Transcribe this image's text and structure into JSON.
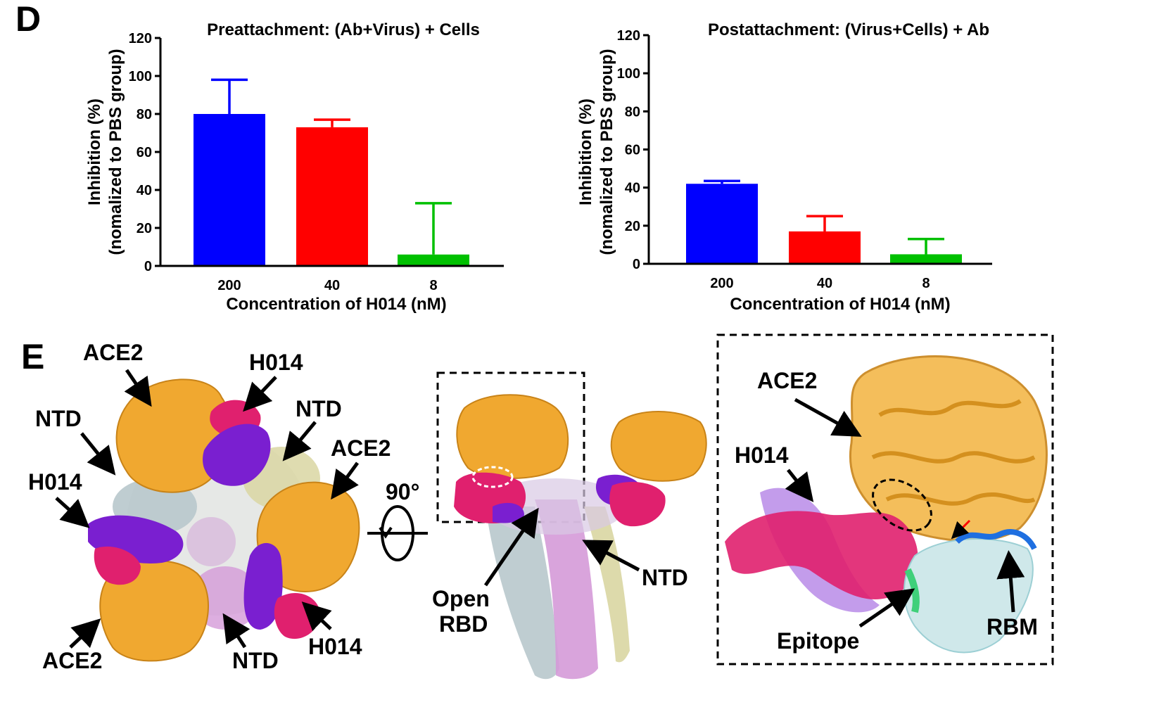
{
  "panel_d_letter": "D",
  "panel_e_letter": "E",
  "colors": {
    "c200": "#0000ff",
    "c40": "#ff0000",
    "c8": "#00c000",
    "ace2": "#f0a830",
    "h014_pink": "#e0206e",
    "h014_purple": "#7a1fd0",
    "spike_gray": "#b8c8cc",
    "spike_pink": "#d59ad8",
    "spike_olive": "#d9d6a2"
  },
  "chart_data": [
    {
      "type": "bar",
      "title": "Preattachment: (Ab+Virus) + Cells",
      "xlabel": "Concentration of H014 (nM)",
      "ylabel": [
        "Inhibition (%)",
        "(nomalized to PBS group)"
      ],
      "ylim": [
        0,
        120
      ],
      "yticks": [
        "0",
        "20",
        "40",
        "60",
        "80",
        "100",
        "120"
      ],
      "categories": [
        "200",
        "40",
        "8"
      ],
      "values": [
        80,
        73,
        6
      ],
      "errors": [
        18,
        4,
        27
      ],
      "colors": [
        "#0000ff",
        "#ff0000",
        "#00c000"
      ]
    },
    {
      "type": "bar",
      "title": "Postattachment: (Virus+Cells) + Ab",
      "xlabel": "Concentration of H014 (nM)",
      "ylabel": [
        "Inhibition (%)",
        "(nomalized to PBS group)"
      ],
      "ylim": [
        0,
        120
      ],
      "yticks": [
        "0",
        "20",
        "40",
        "60",
        "80",
        "100",
        "120"
      ],
      "categories": [
        "200",
        "40",
        "8"
      ],
      "values": [
        42,
        17,
        5
      ],
      "errors": [
        1.5,
        8,
        8
      ],
      "colors": [
        "#0000ff",
        "#ff0000",
        "#00c000"
      ]
    }
  ],
  "panel_e": {
    "left_labels": {
      "ace2_top": "ACE2",
      "h014_top": "H014",
      "ntd_right": "NTD",
      "ntd_left": "NTD",
      "ace2_right": "ACE2",
      "h014_left": "H014",
      "ace2_bottom": "ACE2",
      "ntd_bottom": "NTD",
      "h014_bottom": "H014"
    },
    "rotation": "90°",
    "middle_labels": {
      "open_rbd_line1": "Open",
      "open_rbd_line2": "RBD",
      "ntd": "NTD"
    },
    "right_labels": {
      "ace2": "ACE2",
      "h014": "H014",
      "epitope": "Epitope",
      "rbm": "RBM"
    }
  }
}
